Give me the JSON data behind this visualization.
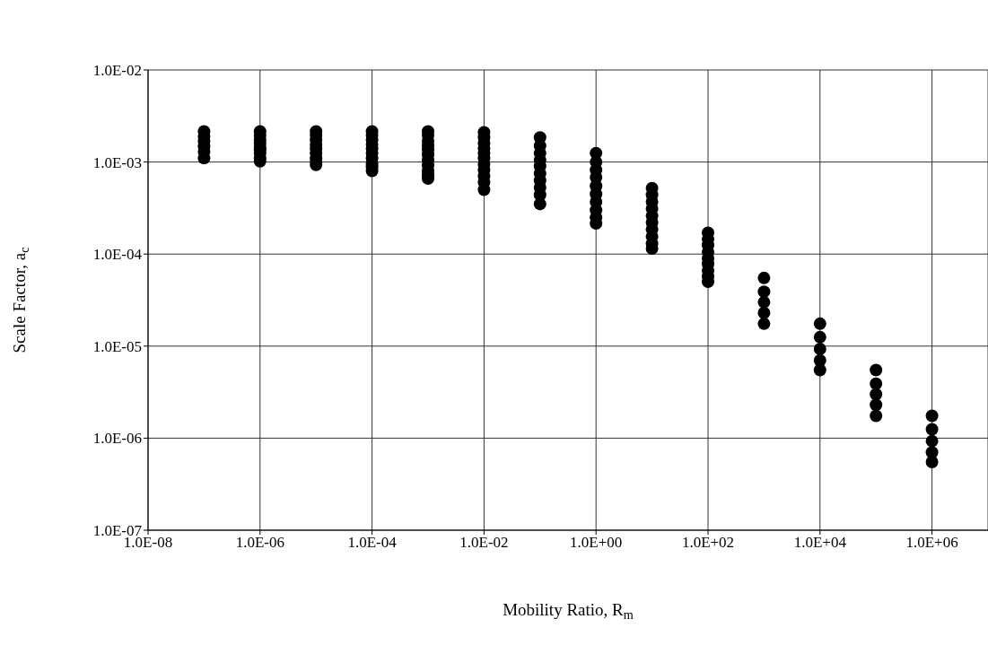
{
  "chart_data": {
    "type": "scatter",
    "xlabel": "Mobility Ratio, R$_{m}$",
    "ylabel": "Scale Factor, a$_{c}$",
    "log": "xy",
    "grid": true,
    "marker": "circle",
    "legend": false,
    "xlim": [
      1e-08,
      10000000.0
    ],
    "ylim": [
      1e-07,
      0.01
    ],
    "xticks": [
      {
        "value": 1e-08,
        "label": "1.0E-08"
      },
      {
        "value": 1e-06,
        "label": "1.0E-06"
      },
      {
        "value": 0.0001,
        "label": "1.0E-04"
      },
      {
        "value": 0.01,
        "label": "1.0E-02"
      },
      {
        "value": 1,
        "label": "1.0E+00"
      },
      {
        "value": 100,
        "label": "1.0E+02"
      },
      {
        "value": 10000,
        "label": "1.0E+04"
      },
      {
        "value": 1000000,
        "label": "1.0E+06"
      }
    ],
    "yticks": [
      {
        "value": 1e-07,
        "label": "1.0E-07"
      },
      {
        "value": 1e-06,
        "label": "1.0E-06"
      },
      {
        "value": 1e-05,
        "label": "1.0E-05"
      },
      {
        "value": 0.0001,
        "label": "1.0E-04"
      },
      {
        "value": 0.001,
        "label": "1.0E-03"
      },
      {
        "value": 0.01,
        "label": "1.0E-02"
      }
    ],
    "series": [
      {
        "color": "#000000",
        "x": [
          1e-07,
          1e-07,
          1e-07,
          1e-07,
          1e-07,
          1e-07,
          1e-06,
          1e-06,
          1e-06,
          1e-06,
          1e-06,
          1e-06,
          1e-06,
          1e-06,
          1e-06,
          1e-05,
          1e-05,
          1e-05,
          1e-05,
          1e-05,
          1e-05,
          1e-05,
          1e-05,
          1e-05,
          0.0001,
          0.0001,
          0.0001,
          0.0001,
          0.0001,
          0.0001,
          0.0001,
          0.0001,
          0.0001,
          0.0001,
          0.001,
          0.001,
          0.001,
          0.001,
          0.001,
          0.001,
          0.001,
          0.001,
          0.001,
          0.001,
          0.001,
          0.01,
          0.01,
          0.01,
          0.01,
          0.01,
          0.01,
          0.01,
          0.01,
          0.01,
          0.01,
          0.01,
          0.1,
          0.1,
          0.1,
          0.1,
          0.1,
          0.1,
          0.1,
          0.1,
          0.1,
          0.1,
          1,
          1,
          1,
          1,
          1,
          1,
          1,
          1,
          1,
          1,
          10,
          10,
          10,
          10,
          10,
          10,
          10,
          10,
          10,
          10,
          100,
          100,
          100,
          100,
          100,
          100,
          100,
          100,
          100,
          1000,
          1000,
          1000,
          1000,
          1000,
          10000,
          10000,
          10000,
          10000,
          10000,
          100000,
          100000,
          100000,
          100000,
          100000,
          1000000,
          1000000,
          1000000,
          1000000,
          1000000
        ],
        "values": [
          0.00215,
          0.0019,
          0.00168,
          0.00148,
          0.0013,
          0.0011,
          0.00215,
          0.00195,
          0.00175,
          0.0016,
          0.00145,
          0.00135,
          0.00125,
          0.0011,
          0.00102,
          0.00215,
          0.00195,
          0.00175,
          0.00155,
          0.0014,
          0.00125,
          0.0011,
          0.001,
          0.00093,
          0.00215,
          0.00195,
          0.00175,
          0.00155,
          0.0014,
          0.00125,
          0.0011,
          0.00096,
          0.00088,
          0.0008,
          0.00215,
          0.00195,
          0.0017,
          0.0015,
          0.00135,
          0.0012,
          0.00105,
          0.00092,
          0.0008,
          0.00072,
          0.00066,
          0.0021,
          0.00185,
          0.0016,
          0.0014,
          0.00125,
          0.0011,
          0.00095,
          0.00082,
          0.0007,
          0.0006,
          0.0005,
          0.00185,
          0.0015,
          0.00125,
          0.00105,
          0.0009,
          0.00075,
          0.00063,
          0.00053,
          0.00044,
          0.00035,
          0.00125,
          0.001,
          0.00082,
          0.00068,
          0.00055,
          0.00045,
          0.00037,
          0.0003,
          0.00025,
          0.000215,
          0.00052,
          0.00044,
          0.00037,
          0.00031,
          0.00026,
          0.00022,
          0.000185,
          0.000155,
          0.00013,
          0.000115,
          0.00017,
          0.000145,
          0.000125,
          0.000105,
          9e-05,
          7.8e-05,
          6.6e-05,
          5.7e-05,
          5e-05,
          5.5e-05,
          3.9e-05,
          3e-05,
          2.3e-05,
          1.75e-05,
          1.75e-05,
          1.25e-05,
          9.3e-06,
          7e-06,
          5.5e-06,
          5.5e-06,
          3.9e-06,
          3e-06,
          2.3e-06,
          1.75e-06,
          1.75e-06,
          1.25e-06,
          9.3e-07,
          7e-07,
          5.5e-07
        ]
      }
    ]
  }
}
